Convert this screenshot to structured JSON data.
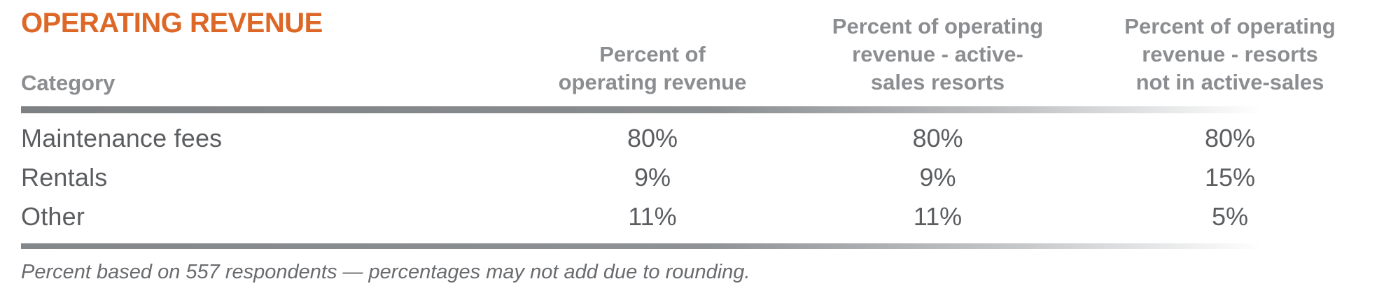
{
  "title": "OPERATING REVENUE",
  "colors": {
    "accent_orange": "#DD6727",
    "header_gray": "#8B8D90",
    "body_gray": "#5B5D60",
    "rule_gray": "#85888B"
  },
  "table": {
    "columns": [
      {
        "id": "category",
        "lines": [
          "Category"
        ]
      },
      {
        "id": "percent-operating-revenue",
        "lines": [
          "Percent of",
          "operating revenue"
        ]
      },
      {
        "id": "percent-active-sales",
        "lines": [
          "Percent of operating",
          "revenue - active-",
          "sales resorts"
        ]
      },
      {
        "id": "percent-not-active-sales",
        "lines": [
          "Percent of operating",
          "revenue - resorts",
          "not in active-sales"
        ]
      }
    ],
    "rows": [
      {
        "category": "Maintenance fees",
        "values": [
          "80%",
          "80%",
          "80%"
        ]
      },
      {
        "category": "Rentals",
        "values": [
          "9%",
          "9%",
          "15%"
        ]
      },
      {
        "category": "Other",
        "values": [
          "11%",
          "11%",
          "5%"
        ]
      }
    ]
  },
  "footnote": "Percent based on 557 respondents — percentages may not add due to rounding.",
  "chart_data": {
    "type": "table",
    "title": "OPERATING REVENUE",
    "categories": [
      "Maintenance fees",
      "Rentals",
      "Other"
    ],
    "series": [
      {
        "name": "Percent of operating revenue",
        "values": [
          80,
          9,
          11
        ]
      },
      {
        "name": "Percent of operating revenue - active-sales resorts",
        "values": [
          80,
          9,
          11
        ]
      },
      {
        "name": "Percent of operating revenue - resorts not in active-sales",
        "values": [
          80,
          15,
          5
        ]
      }
    ],
    "unit": "%",
    "note": "Percent based on 557 respondents — percentages may not add due to rounding."
  }
}
